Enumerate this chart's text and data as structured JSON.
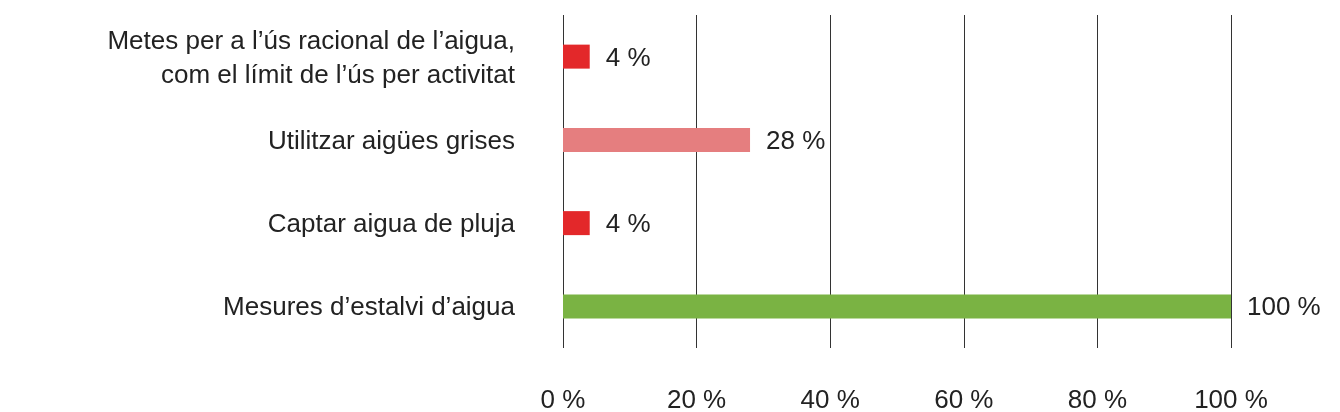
{
  "chart_data": {
    "type": "bar",
    "orientation": "horizontal",
    "categories": [
      "Metes per a l’ús racional de l’aigua,\ncom el límit de l’ús per activitat",
      "Utilitzar aigües grises",
      "Captar aigua de pluja",
      "Mesures d’estalvi d’aigua"
    ],
    "values": [
      4,
      28,
      4,
      100
    ],
    "colors": [
      "#e3282a",
      "#e57e7f",
      "#e3282a",
      "#7ab343"
    ],
    "value_labels": [
      "4 %",
      "28 %",
      "4 %",
      "100 %"
    ],
    "xlim": [
      0,
      100
    ],
    "xticks": [
      {
        "value": 0,
        "label": "0 %"
      },
      {
        "value": 20,
        "label": "20 %"
      },
      {
        "value": 40,
        "label": "40 %"
      },
      {
        "value": 60,
        "label": "60 %"
      },
      {
        "value": 80,
        "label": "80 %"
      },
      {
        "value": 100,
        "label": "100 %"
      }
    ],
    "grid": "x"
  }
}
